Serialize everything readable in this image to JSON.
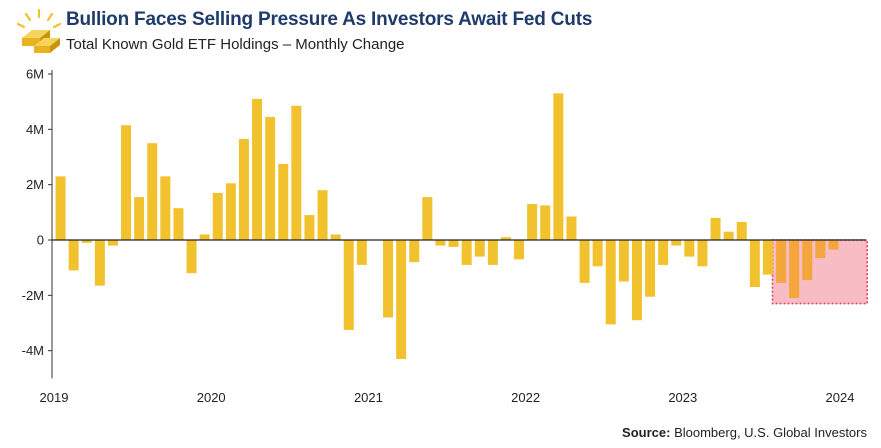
{
  "header": {
    "title": "Bullion Faces Selling Pressure As Investors Await Fed Cuts",
    "subtitle": "Total Known Gold ETF Holdings – Monthly Change"
  },
  "source": {
    "label": "Source:",
    "text": "Bloomberg, U.S. Global Investors"
  },
  "colors": {
    "bar": "#f2c12e",
    "bar_highlight": "#f4a63c",
    "highlight_fill": "#f8bcc4",
    "highlight_border": "#e0405a",
    "title": "#1f3b6b"
  },
  "chart_data": {
    "type": "bar",
    "title": "Total Known Gold ETF Holdings – Monthly Change",
    "ylim": [
      -5000000,
      6000000
    ],
    "yticks": [
      {
        "value": 6000000,
        "label": "6M"
      },
      {
        "value": 4000000,
        "label": "4M"
      },
      {
        "value": 2000000,
        "label": "2M"
      },
      {
        "value": 0,
        "label": "0"
      },
      {
        "value": -2000000,
        "label": "-2M"
      },
      {
        "value": -4000000,
        "label": "-4M"
      }
    ],
    "xticks": [
      {
        "month_index": 0,
        "label": "2019"
      },
      {
        "month_index": 12,
        "label": "2020"
      },
      {
        "month_index": 24,
        "label": "2021"
      },
      {
        "month_index": 36,
        "label": "2022"
      },
      {
        "month_index": 48,
        "label": "2023"
      },
      {
        "month_index": 60,
        "label": "2024"
      }
    ],
    "highlight": {
      "from_month_index": 55,
      "to_month_index": 62
    },
    "months": [
      "2019-01",
      "2019-02",
      "2019-03",
      "2019-04",
      "2019-05",
      "2019-06",
      "2019-07",
      "2019-08",
      "2019-09",
      "2019-10",
      "2019-11",
      "2019-12",
      "2020-01",
      "2020-02",
      "2020-03",
      "2020-04",
      "2020-05",
      "2020-06",
      "2020-07",
      "2020-08",
      "2020-09",
      "2020-10",
      "2020-11",
      "2020-12",
      "2021-01",
      "2021-02",
      "2021-03",
      "2021-04",
      "2021-05",
      "2021-06",
      "2021-07",
      "2021-08",
      "2021-09",
      "2021-10",
      "2021-11",
      "2021-12",
      "2022-01",
      "2022-02",
      "2022-03",
      "2022-04",
      "2022-05",
      "2022-06",
      "2022-07",
      "2022-08",
      "2022-09",
      "2022-10",
      "2022-11",
      "2022-12",
      "2023-01",
      "2023-02",
      "2023-03",
      "2023-04",
      "2023-05",
      "2023-06",
      "2023-07",
      "2023-08",
      "2023-09",
      "2023-10",
      "2023-11",
      "2023-12",
      "2024-01",
      "2024-02"
    ],
    "values": [
      2300000,
      -1100000,
      -100000,
      -1650000,
      -200000,
      4150000,
      1550000,
      3500000,
      2300000,
      1150000,
      -1200000,
      200000,
      1700000,
      2050000,
      3650000,
      5100000,
      4450000,
      2750000,
      4850000,
      900000,
      1800000,
      200000,
      -3250000,
      -900000,
      0,
      -2800000,
      -4300000,
      -800000,
      1550000,
      -200000,
      -250000,
      -900000,
      -600000,
      -900000,
      100000,
      -700000,
      1300000,
      1250000,
      5300000,
      850000,
      -1550000,
      -950000,
      -3050000,
      -1500000,
      -2900000,
      -2050000,
      -900000,
      -200000,
      -600000,
      -950000,
      800000,
      300000,
      650000,
      -1700000,
      -1250000,
      -1550000,
      -2100000,
      -1450000,
      -650000,
      -350000,
      0,
      0
    ]
  }
}
